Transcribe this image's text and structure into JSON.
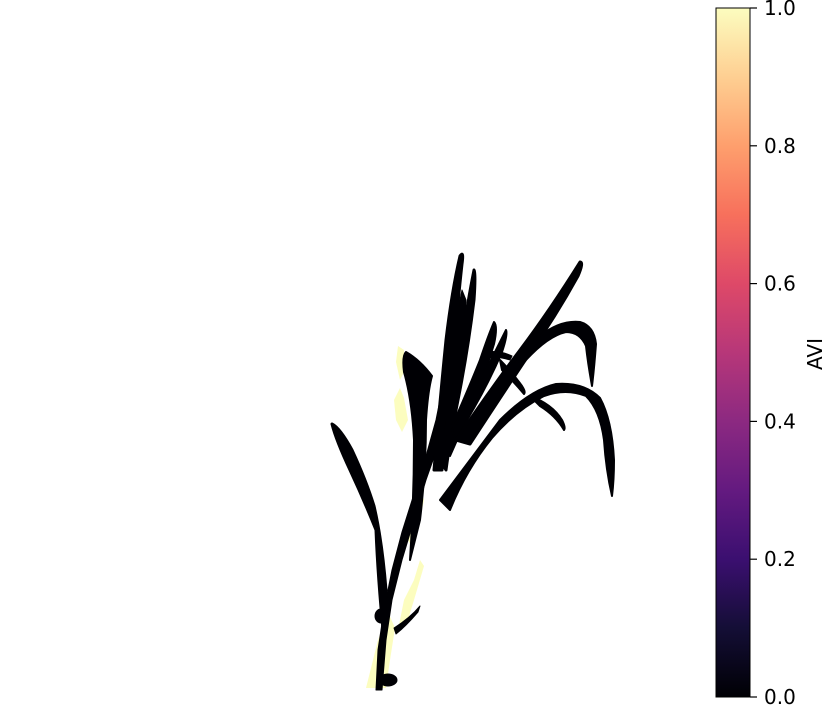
{
  "chart_data": {
    "type": "heatmap",
    "title": "",
    "xlabel": "",
    "ylabel": "",
    "image_content": "plant",
    "colormap": "magma",
    "colorbar": {
      "label": "AVI",
      "range": [
        0.0,
        1.0
      ],
      "ticks": [
        0.0,
        0.2,
        0.4,
        0.6,
        0.8,
        1.0
      ],
      "tick_labels": [
        "0.0",
        "0.2",
        "0.4",
        "0.6",
        "0.8",
        "1.0"
      ]
    },
    "value_regions": [
      {
        "name": "leaves",
        "value": 0.0
      },
      {
        "name": "stem-edges",
        "value": 1.0
      }
    ],
    "colors": {
      "low": "#000004",
      "high": "#fcfdbf",
      "background": "#ffffff"
    }
  }
}
